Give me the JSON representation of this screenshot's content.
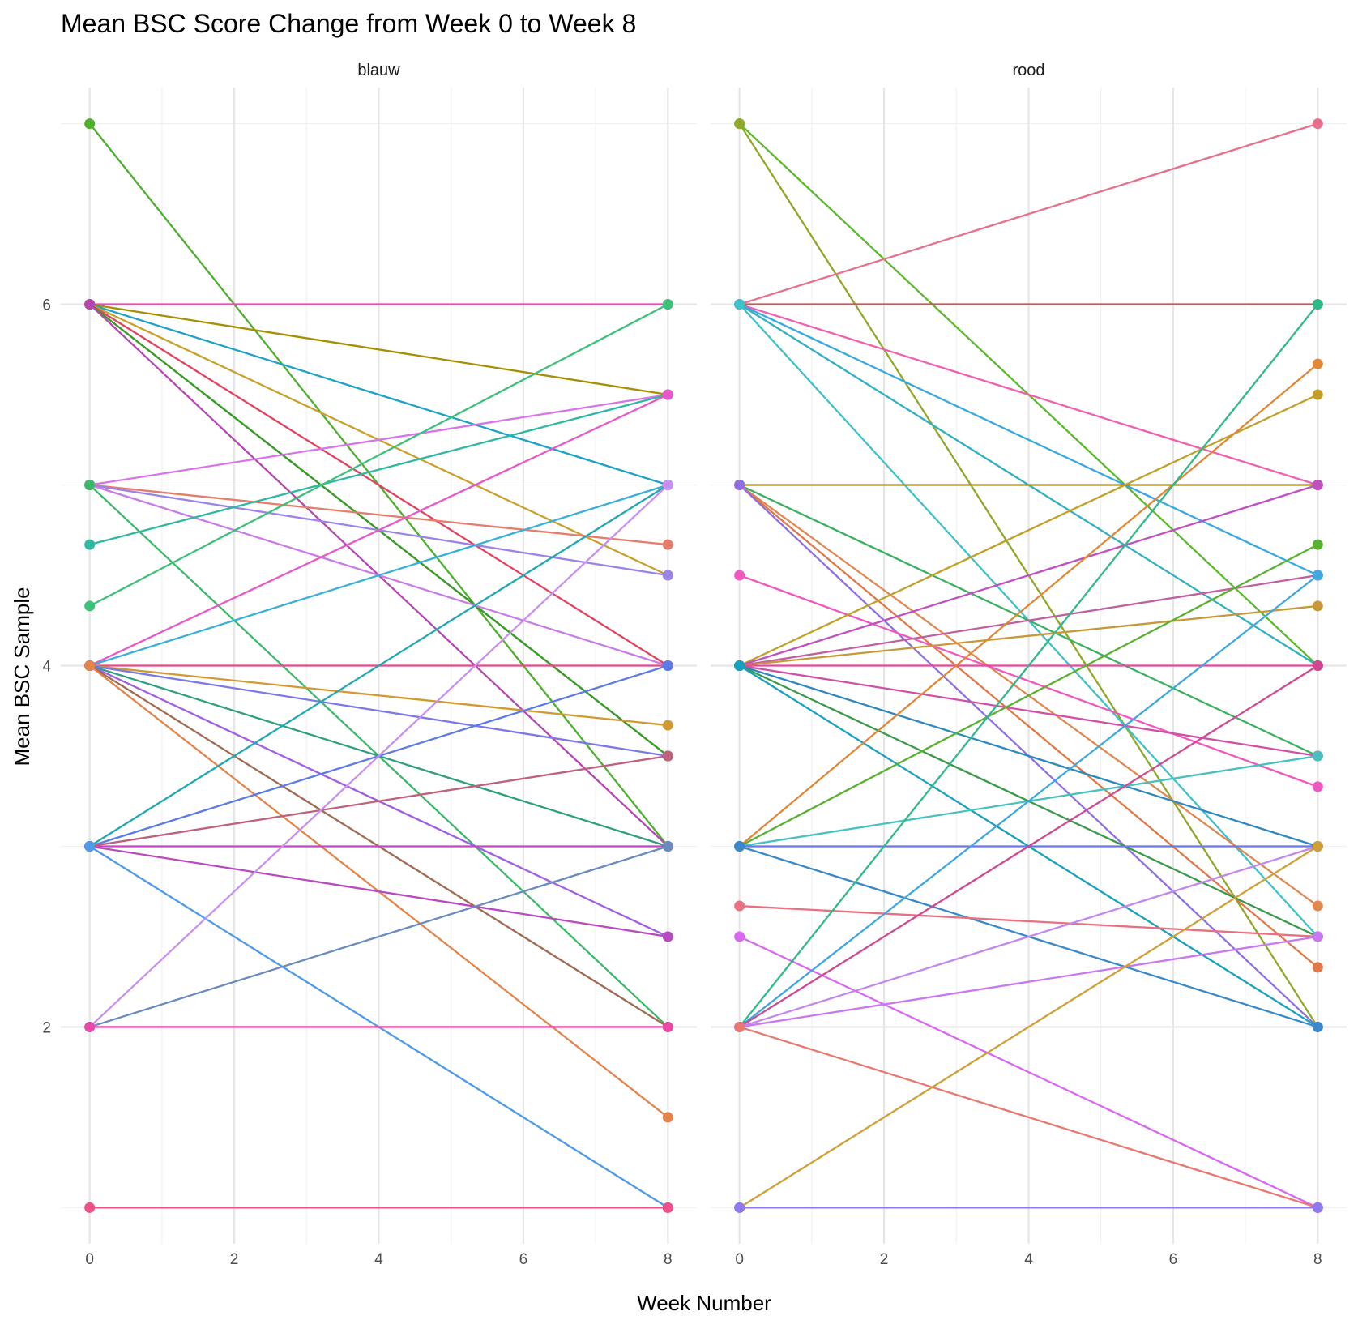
{
  "chart_data": {
    "type": "line",
    "title": "Mean BSC Score Change from Week 0 to Week 8",
    "xlabel": "Week Number",
    "ylabel": "Mean BSC Sample",
    "x_ticks": [
      0,
      2,
      4,
      6,
      8
    ],
    "y_ticks": [
      2,
      4,
      6
    ],
    "xlim": [
      -0.4,
      8.4
    ],
    "ylim": [
      0.8,
      7.2
    ],
    "grid": true,
    "legend": "none",
    "panels": [
      {
        "label": "blauw",
        "segments": [
          {
            "y0": 7.0,
            "y1": 3.0,
            "color": "#4DAF2C"
          },
          {
            "y0": 6.0,
            "y1": 6.0,
            "color": "#E84FB0"
          },
          {
            "y0": 6.0,
            "y1": 5.5,
            "color": "#A68F00"
          },
          {
            "y0": 6.0,
            "y1": 5.0,
            "color": "#1FA2C8"
          },
          {
            "y0": 6.0,
            "y1": 4.5,
            "color": "#C9A02A"
          },
          {
            "y0": 6.0,
            "y1": 4.0,
            "color": "#E3425F"
          },
          {
            "y0": 6.0,
            "y1": 3.5,
            "color": "#5B9A1A"
          },
          {
            "y0": 6.0,
            "y1": 3.5,
            "color": "#3A9A2C"
          },
          {
            "y0": 6.0,
            "y1": 3.0,
            "color": "#B548B0"
          },
          {
            "y0": 5.0,
            "y1": 5.5,
            "color": "#D874E8"
          },
          {
            "y0": 5.0,
            "y1": 4.67,
            "color": "#E67C6B"
          },
          {
            "y0": 5.0,
            "y1": 4.5,
            "color": "#9B83E8"
          },
          {
            "y0": 5.0,
            "y1": 4.0,
            "color": "#C77CE8"
          },
          {
            "y0": 5.0,
            "y1": 2.0,
            "color": "#3DB86A"
          },
          {
            "y0": 4.67,
            "y1": 5.5,
            "color": "#2EB8A0"
          },
          {
            "y0": 4.33,
            "y1": 6.0,
            "color": "#3DC07A"
          },
          {
            "y0": 4.0,
            "y1": 5.5,
            "color": "#E858C8"
          },
          {
            "y0": 4.0,
            "y1": 5.0,
            "color": "#38B0D8"
          },
          {
            "y0": 4.0,
            "y1": 4.0,
            "color": "#E84A8A"
          },
          {
            "y0": 4.0,
            "y1": 3.67,
            "color": "#D19A30"
          },
          {
            "y0": 4.0,
            "y1": 3.5,
            "color": "#7B78E8"
          },
          {
            "y0": 4.0,
            "y1": 3.0,
            "color": "#2EA080"
          },
          {
            "y0": 4.0,
            "y1": 2.5,
            "color": "#A05EE0"
          },
          {
            "y0": 4.0,
            "y1": 2.0,
            "color": "#A06A50"
          },
          {
            "y0": 4.0,
            "y1": 1.5,
            "color": "#E3844A"
          },
          {
            "y0": 3.0,
            "y1": 5.0,
            "color": "#1FA8B0"
          },
          {
            "y0": 3.0,
            "y1": 4.0,
            "color": "#5B7BE8"
          },
          {
            "y0": 3.0,
            "y1": 3.5,
            "color": "#C0607A"
          },
          {
            "y0": 3.0,
            "y1": 3.0,
            "color": "#C447C8"
          },
          {
            "y0": 3.0,
            "y1": 2.5,
            "color": "#B84AC0"
          },
          {
            "y0": 3.0,
            "y1": 1.0,
            "color": "#4F9AE8"
          },
          {
            "y0": 2.0,
            "y1": 5.0,
            "color": "#C890F0"
          },
          {
            "y0": 2.0,
            "y1": 3.0,
            "color": "#6A8AC0"
          },
          {
            "y0": 2.0,
            "y1": 2.0,
            "color": "#E84AA8"
          },
          {
            "y0": 1.0,
            "y1": 1.0,
            "color": "#F0508A"
          }
        ]
      },
      {
        "label": "rood",
        "segments": [
          {
            "y0": 7.0,
            "y1": 4.0,
            "color": "#5CB82C"
          },
          {
            "y0": 7.0,
            "y1": 2.0,
            "color": "#8FA828"
          },
          {
            "y0": 6.0,
            "y1": 7.0,
            "color": "#E8708A"
          },
          {
            "y0": 6.0,
            "y1": 6.0,
            "color": "#B86060"
          },
          {
            "y0": 6.0,
            "y1": 5.0,
            "color": "#F060B0"
          },
          {
            "y0": 6.0,
            "y1": 4.5,
            "color": "#38A8E0"
          },
          {
            "y0": 6.0,
            "y1": 4.0,
            "color": "#30B0C0"
          },
          {
            "y0": 6.0,
            "y1": 2.5,
            "color": "#40C0C8"
          },
          {
            "y0": 5.0,
            "y1": 5.0,
            "color": "#A08A10"
          },
          {
            "y0": 5.0,
            "y1": 3.5,
            "color": "#3CB060"
          },
          {
            "y0": 5.0,
            "y1": 2.67,
            "color": "#E08850"
          },
          {
            "y0": 5.0,
            "y1": 2.33,
            "color": "#E07848"
          },
          {
            "y0": 5.0,
            "y1": 2.0,
            "color": "#9070E0"
          },
          {
            "y0": 4.5,
            "y1": 3.33,
            "color": "#F058C0"
          },
          {
            "y0": 4.0,
            "y1": 5.5,
            "color": "#C0A028"
          },
          {
            "y0": 4.0,
            "y1": 5.0,
            "color": "#C050C0"
          },
          {
            "y0": 4.0,
            "y1": 4.5,
            "color": "#C060A0"
          },
          {
            "y0": 4.0,
            "y1": 4.33,
            "color": "#C89838"
          },
          {
            "y0": 4.0,
            "y1": 4.0,
            "color": "#E848A0"
          },
          {
            "y0": 4.0,
            "y1": 3.5,
            "color": "#D050A8"
          },
          {
            "y0": 4.0,
            "y1": 3.0,
            "color": "#2E88C0"
          },
          {
            "y0": 4.0,
            "y1": 2.5,
            "color": "#3A9A48"
          },
          {
            "y0": 4.0,
            "y1": 2.0,
            "color": "#18A0C0"
          },
          {
            "y0": 3.0,
            "y1": 5.67,
            "color": "#E08838"
          },
          {
            "y0": 3.0,
            "y1": 4.67,
            "color": "#58B030"
          },
          {
            "y0": 3.0,
            "y1": 3.5,
            "color": "#48C0C0"
          },
          {
            "y0": 3.0,
            "y1": 3.0,
            "color": "#6878E8"
          },
          {
            "y0": 3.0,
            "y1": 2.0,
            "color": "#3A88C8"
          },
          {
            "y0": 2.67,
            "y1": 2.5,
            "color": "#E87080"
          },
          {
            "y0": 2.5,
            "y1": 1.0,
            "color": "#D868F0"
          },
          {
            "y0": 2.0,
            "y1": 6.0,
            "color": "#30B888"
          },
          {
            "y0": 2.0,
            "y1": 4.5,
            "color": "#40A8E0"
          },
          {
            "y0": 2.0,
            "y1": 4.0,
            "color": "#D04890"
          },
          {
            "y0": 2.0,
            "y1": 3.0,
            "color": "#C088F0"
          },
          {
            "y0": 2.0,
            "y1": 2.5,
            "color": "#C878F0"
          },
          {
            "y0": 2.0,
            "y1": 1.0,
            "color": "#E87870"
          },
          {
            "y0": 1.0,
            "y1": 3.0,
            "color": "#D0A038"
          },
          {
            "y0": 1.0,
            "y1": 1.0,
            "color": "#9078F0"
          }
        ]
      }
    ]
  }
}
